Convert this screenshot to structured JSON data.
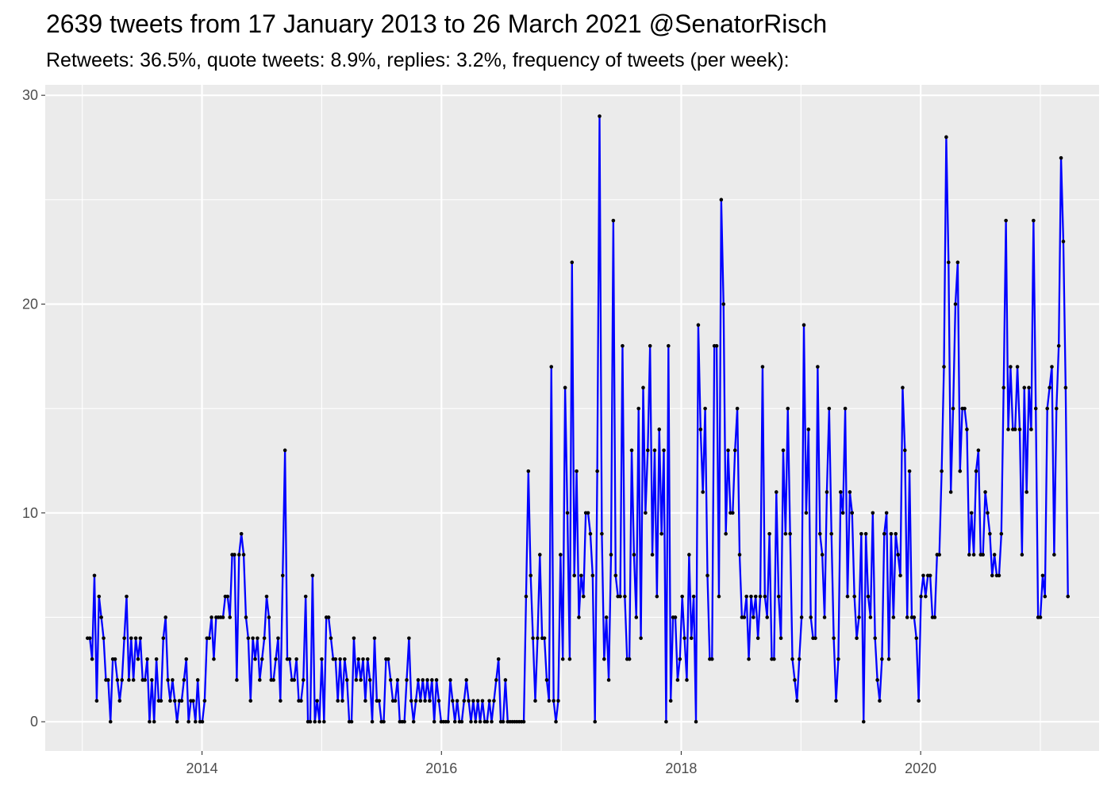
{
  "chart_data": {
    "type": "line",
    "title": "2639 tweets from 17 January 2013 to 26 March 2021 @SenatorRisch",
    "subtitle": "Retweets: 36.5%, quote tweets: 8.9%, replies: 3.2%, frequency of tweets (per week):",
    "xlabel": "",
    "ylabel": "",
    "x_start": "2013-01-17",
    "x_step": "1 week",
    "xlim": [
      "2012-09-10",
      "2021-06-28"
    ],
    "ylim": [
      -1.4,
      30.5
    ],
    "x_ticks": [
      "2014",
      "2016",
      "2018",
      "2020"
    ],
    "y_ticks": [
      0,
      10,
      20,
      30
    ],
    "grid": true,
    "line_color": "#0000ff",
    "point_color": "#000000",
    "panel_background": "#ebebeb",
    "series": [
      {
        "values": [
          4,
          4,
          3,
          7,
          1,
          6,
          5,
          4,
          2,
          2,
          0,
          3,
          3,
          2,
          1,
          2,
          4,
          6,
          2,
          4,
          2,
          4,
          3,
          4,
          2,
          2,
          3,
          0,
          2,
          0,
          3,
          1,
          1,
          4,
          5,
          2,
          1,
          2,
          1,
          0,
          1,
          1,
          2,
          3,
          0,
          1,
          1,
          0,
          2,
          0,
          0,
          1,
          4,
          4,
          5,
          3,
          5,
          5,
          5,
          5,
          6,
          6,
          5,
          8,
          8,
          2,
          8,
          9,
          8,
          5,
          4,
          1,
          4,
          3,
          4,
          2,
          3,
          4,
          6,
          5,
          2,
          2,
          3,
          4,
          1,
          7,
          13,
          3,
          3,
          2,
          2,
          3,
          1,
          1,
          2,
          6,
          0,
          0,
          7,
          0,
          1,
          0,
          3,
          0,
          5,
          5,
          4,
          3,
          3,
          1,
          3,
          1,
          3,
          2,
          0,
          0,
          4,
          2,
          3,
          2,
          3,
          1,
          3,
          2,
          0,
          4,
          1,
          1,
          0,
          0,
          3,
          3,
          2,
          1,
          1,
          2,
          0,
          0,
          0,
          2,
          4,
          1,
          0,
          1,
          2,
          1,
          2,
          1,
          2,
          1,
          2,
          0,
          2,
          1,
          0,
          0,
          0,
          0,
          2,
          1,
          0,
          1,
          0,
          0,
          1,
          2,
          1,
          0,
          1,
          0,
          1,
          0,
          1,
          0,
          0,
          1,
          0,
          1,
          2,
          3,
          0,
          0,
          2,
          0,
          0,
          0,
          0,
          0,
          0,
          0,
          0,
          6,
          12,
          7,
          4,
          1,
          4,
          8,
          4,
          4,
          2,
          1,
          17,
          1,
          0,
          1,
          8,
          3,
          16,
          10,
          3,
          22,
          7,
          12,
          5,
          7,
          6,
          10,
          10,
          9,
          7,
          0,
          12,
          29,
          9,
          3,
          5,
          2,
          8,
          24,
          7,
          6,
          6,
          18,
          6,
          3,
          3,
          13,
          8,
          5,
          15,
          4,
          16,
          10,
          13,
          18,
          8,
          13,
          6,
          14,
          9,
          13,
          0,
          18,
          1,
          5,
          5,
          2,
          3,
          6,
          4,
          2,
          8,
          4,
          6,
          0,
          19,
          14,
          11,
          15,
          7,
          3,
          3,
          18,
          18,
          6,
          25,
          20,
          9,
          13,
          10,
          10,
          13,
          15,
          8,
          5,
          5,
          6,
          3,
          6,
          5,
          6,
          4,
          6,
          17,
          6,
          5,
          9,
          3,
          3,
          11,
          6,
          4,
          13,
          9,
          15,
          9,
          3,
          2,
          1,
          3,
          5,
          19,
          10,
          14,
          5,
          4,
          4,
          17,
          9,
          8,
          5,
          11,
          15,
          9,
          4,
          1,
          3,
          11,
          10,
          15,
          6,
          11,
          10,
          6,
          4,
          5,
          9,
          0,
          9,
          6,
          5,
          10,
          4,
          2,
          1,
          3,
          9,
          10,
          3,
          9,
          5,
          9,
          8,
          7,
          16,
          13,
          5,
          12,
          5,
          5,
          4,
          1,
          6,
          7,
          6,
          7,
          7,
          5,
          5,
          8,
          8,
          12,
          17,
          28,
          22,
          11,
          15,
          20,
          22,
          12,
          15,
          15,
          14,
          8,
          10,
          8,
          12,
          13,
          8,
          8,
          11,
          10,
          9,
          7,
          8,
          7,
          7,
          9,
          16,
          24,
          14,
          17,
          14,
          14,
          17,
          14,
          8,
          16,
          11,
          16,
          14,
          24,
          15,
          5,
          5,
          7,
          6,
          15,
          16,
          17,
          8,
          15,
          18,
          27,
          23,
          16,
          6
        ]
      }
    ]
  }
}
